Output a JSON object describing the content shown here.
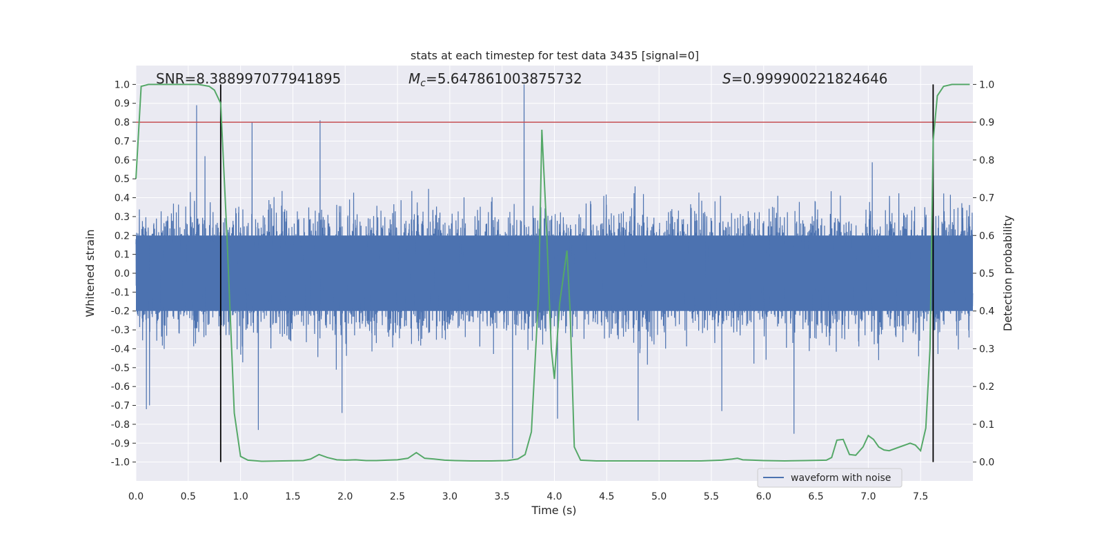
{
  "chart_data": {
    "type": "line",
    "title": "stats at each timestep for test data 3435 [signal=0]",
    "xlabel": "Time (s)",
    "ylabel_left": "Whitened strain",
    "ylabel_right": "Detection probability",
    "xlim": [
      0.0,
      8.0
    ],
    "ylim_left": [
      -1.1,
      1.1
    ],
    "ylim_right": [
      -0.05,
      1.05
    ],
    "x_ticks": [
      "0.0",
      "0.5",
      "1.0",
      "1.5",
      "2.0",
      "2.5",
      "3.0",
      "3.5",
      "4.0",
      "4.5",
      "5.0",
      "5.5",
      "6.0",
      "6.5",
      "7.0",
      "7.5"
    ],
    "y_ticks_left": [
      "1.0",
      "0.9",
      "0.8",
      "0.7",
      "0.6",
      "0.5",
      "0.4",
      "0.3",
      "0.2",
      "0.1",
      "0.0",
      "-0.1",
      "-0.2",
      "-0.3",
      "-0.4",
      "-0.5",
      "-0.6",
      "-0.7",
      "-0.8",
      "-0.9",
      "-1.0"
    ],
    "y_ticks_right": [
      "1.0",
      "0.9",
      "0.8",
      "0.7",
      "0.6",
      "0.5",
      "0.4",
      "0.3",
      "0.2",
      "0.1",
      "0.0"
    ],
    "stats": {
      "snr_label": "SNR=8.388997077941895",
      "mc_symbol": "M",
      "mc_sub": "c",
      "mc_value": "=5.647861003875732",
      "s_symbol": "S",
      "s_value": "=0.999900221824646"
    },
    "threshold": {
      "value": 0.8,
      "color": "#c44e52"
    },
    "vertical_lines": [
      0.81,
      7.62
    ],
    "legend": {
      "label": "waveform with noise",
      "location": "lower-right"
    },
    "colors": {
      "waveform": "#4c72b0",
      "probability": "#55a868",
      "plot_bg": "#eaeaf2",
      "grid": "#ffffff",
      "vline": "#000000"
    },
    "waveform": {
      "name": "waveform with noise",
      "samples": 8000,
      "body_band": [
        -0.2,
        0.2
      ],
      "peaks": [
        {
          "t": 0.58,
          "v": 0.89
        },
        {
          "t": 0.66,
          "v": 0.62
        },
        {
          "t": 1.11,
          "v": 0.8
        },
        {
          "t": 1.76,
          "v": 0.81
        },
        {
          "t": 3.71,
          "v": 1.0
        },
        {
          "t": 3.6,
          "v": -0.98
        },
        {
          "t": 1.17,
          "v": -0.83
        },
        {
          "t": 6.29,
          "v": -0.85
        },
        {
          "t": 0.1,
          "v": -0.72
        },
        {
          "t": 0.13,
          "v": -0.7
        },
        {
          "t": 1.97,
          "v": -0.74
        },
        {
          "t": 4.03,
          "v": -0.77
        },
        {
          "t": 4.8,
          "v": -0.78
        },
        {
          "t": 5.6,
          "v": -0.73
        }
      ]
    },
    "probability": {
      "name": "Detection probability",
      "t": [
        0.0,
        0.05,
        0.12,
        0.2,
        0.3,
        0.4,
        0.5,
        0.6,
        0.7,
        0.75,
        0.81,
        0.87,
        0.94,
        1.0,
        1.07,
        1.2,
        1.4,
        1.6,
        1.67,
        1.75,
        1.83,
        1.92,
        2.0,
        2.1,
        2.2,
        2.3,
        2.4,
        2.5,
        2.6,
        2.68,
        2.76,
        2.85,
        2.95,
        3.05,
        3.2,
        3.4,
        3.55,
        3.65,
        3.72,
        3.78,
        3.85,
        3.88,
        3.92,
        3.97,
        4.0,
        4.05,
        4.12,
        4.15,
        4.19,
        4.25,
        4.4,
        4.6,
        5.0,
        5.4,
        5.6,
        5.7,
        5.75,
        5.8,
        5.9,
        6.0,
        6.2,
        6.4,
        6.6,
        6.65,
        6.7,
        6.76,
        6.82,
        6.88,
        6.95,
        7.0,
        7.05,
        7.1,
        7.15,
        7.2,
        7.3,
        7.4,
        7.45,
        7.5,
        7.55,
        7.59,
        7.62,
        7.66,
        7.72,
        7.8,
        7.9,
        7.97
      ],
      "p": [
        0.75,
        0.995,
        1.0,
        1.0,
        1.0,
        1.0,
        1.0,
        1.0,
        0.995,
        0.985,
        0.95,
        0.6,
        0.13,
        0.015,
        0.005,
        0.002,
        0.003,
        0.004,
        0.008,
        0.02,
        0.012,
        0.006,
        0.005,
        0.006,
        0.004,
        0.004,
        0.005,
        0.006,
        0.01,
        0.025,
        0.01,
        0.008,
        0.005,
        0.004,
        0.003,
        0.003,
        0.004,
        0.008,
        0.02,
        0.08,
        0.45,
        0.88,
        0.65,
        0.3,
        0.22,
        0.42,
        0.56,
        0.4,
        0.04,
        0.005,
        0.003,
        0.003,
        0.003,
        0.003,
        0.005,
        0.008,
        0.01,
        0.006,
        0.005,
        0.004,
        0.003,
        0.004,
        0.005,
        0.012,
        0.058,
        0.06,
        0.02,
        0.018,
        0.04,
        0.07,
        0.06,
        0.04,
        0.032,
        0.03,
        0.04,
        0.05,
        0.045,
        0.03,
        0.09,
        0.3,
        0.85,
        0.97,
        0.995,
        1.0,
        1.0,
        1.0
      ]
    }
  }
}
